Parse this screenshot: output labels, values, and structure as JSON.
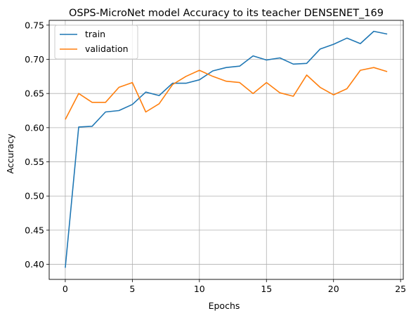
{
  "chart_data": {
    "type": "line",
    "title": "OSPS-MicroNet model Accuracy to its teacher DENSENET_169",
    "xlabel": "Epochs",
    "ylabel": "Accuracy",
    "xlim": [
      -1.2,
      25.2
    ],
    "ylim": [
      0.378,
      0.757
    ],
    "xticks": [
      0,
      5,
      10,
      15,
      20,
      25
    ],
    "yticks": [
      0.4,
      0.45,
      0.5,
      0.55,
      0.6,
      0.65,
      0.7,
      0.75
    ],
    "grid": true,
    "legend_position": "top-left",
    "x": [
      0,
      1,
      2,
      3,
      4,
      5,
      6,
      7,
      8,
      9,
      10,
      11,
      12,
      13,
      14,
      15,
      16,
      17,
      18,
      19,
      20,
      21,
      22,
      23,
      24
    ],
    "series": [
      {
        "name": "train",
        "color": "#1f77b4",
        "values": [
          0.395,
          0.601,
          0.602,
          0.623,
          0.625,
          0.634,
          0.652,
          0.647,
          0.665,
          0.665,
          0.67,
          0.683,
          0.688,
          0.69,
          0.705,
          0.699,
          0.702,
          0.693,
          0.694,
          0.715,
          0.722,
          0.731,
          0.723,
          0.741,
          0.737
        ]
      },
      {
        "name": "validation",
        "color": "#ff7f0e",
        "values": [
          0.612,
          0.65,
          0.637,
          0.637,
          0.659,
          0.666,
          0.623,
          0.635,
          0.663,
          0.675,
          0.684,
          0.675,
          0.668,
          0.666,
          0.65,
          0.666,
          0.651,
          0.646,
          0.677,
          0.659,
          0.648,
          0.657,
          0.684,
          0.688,
          0.682
        ]
      }
    ]
  }
}
